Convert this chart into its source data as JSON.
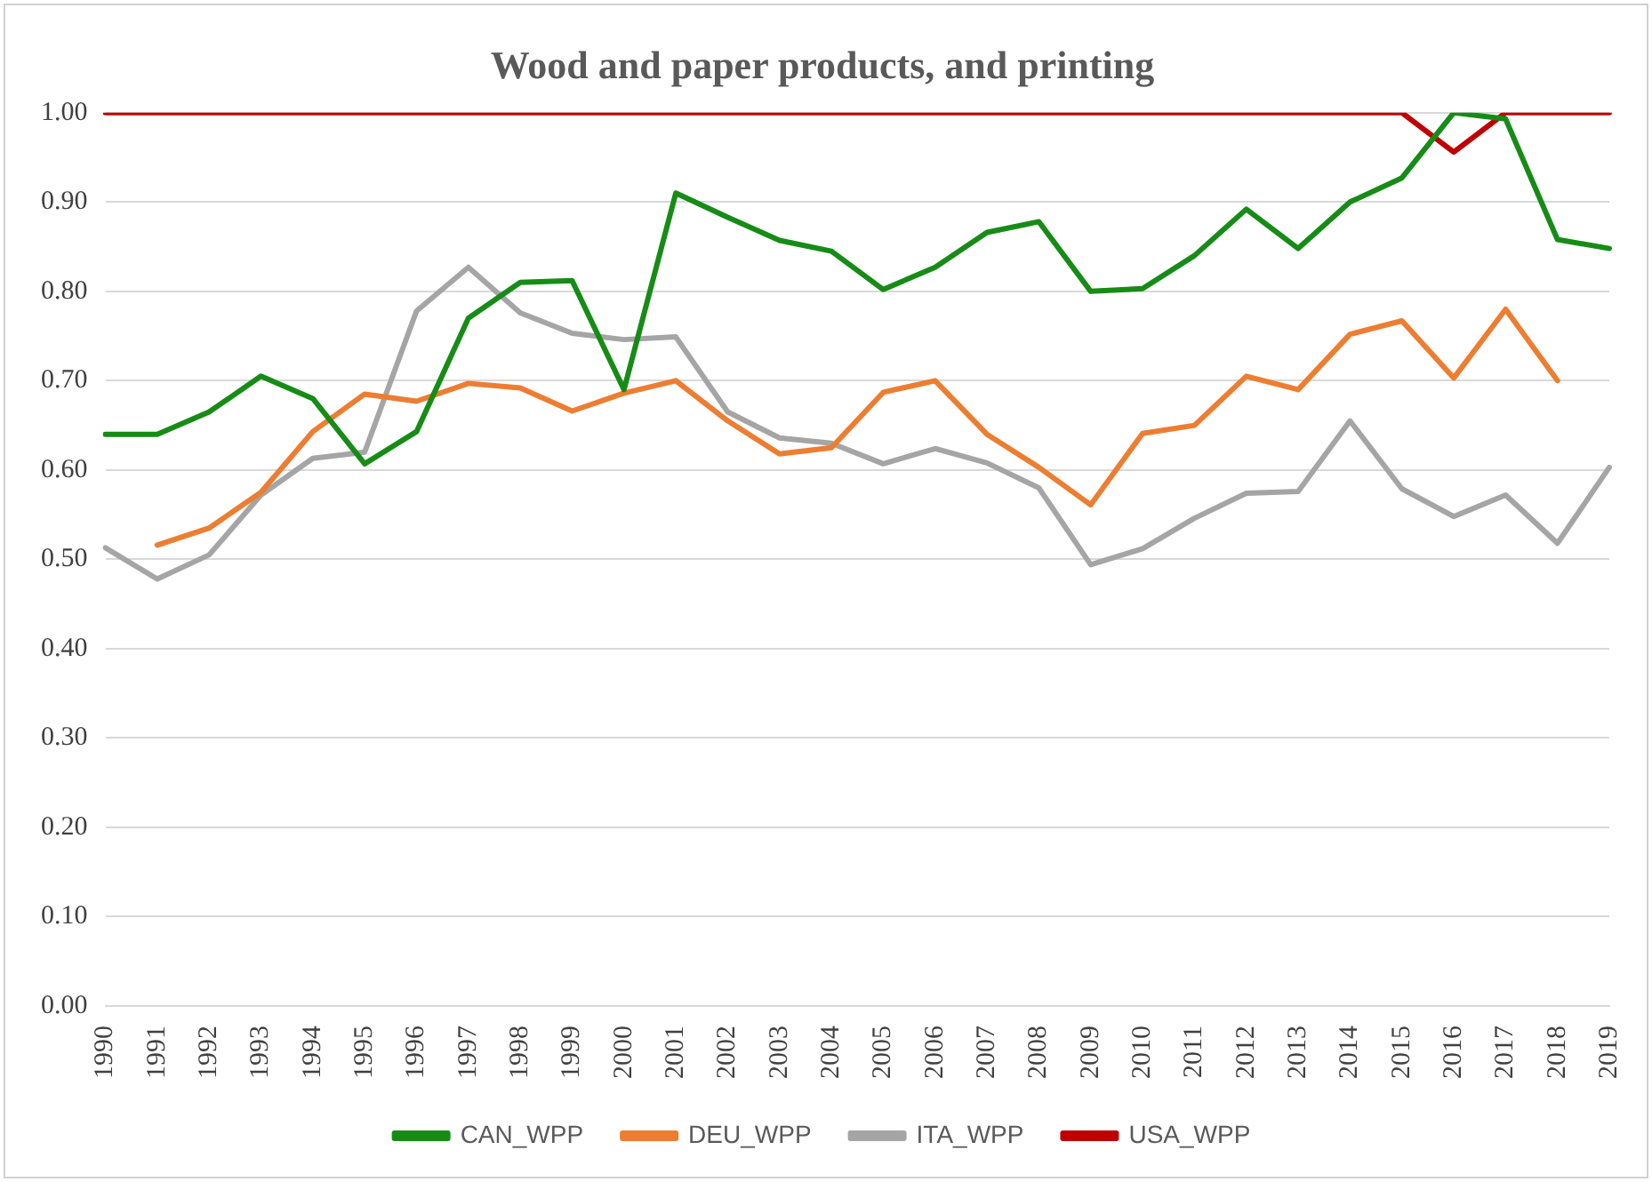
{
  "chart_data": {
    "type": "line",
    "title": "Wood and paper products, and printing",
    "categories": [
      "1990",
      "1991",
      "1992",
      "1993",
      "1994",
      "1995",
      "1996",
      "1997",
      "1998",
      "1999",
      "2000",
      "2001",
      "2002",
      "2003",
      "2004",
      "2005",
      "2006",
      "2007",
      "2008",
      "2009",
      "2010",
      "2011",
      "2012",
      "2013",
      "2014",
      "2015",
      "2016",
      "2017",
      "2018",
      "2019"
    ],
    "series": [
      {
        "name": "CAN_WPP",
        "color": "#168c16",
        "values": [
          0.64,
          0.64,
          0.665,
          0.705,
          0.68,
          0.607,
          0.643,
          0.77,
          0.81,
          0.812,
          0.69,
          0.91,
          0.883,
          0.857,
          0.845,
          0.802,
          0.827,
          0.866,
          0.878,
          0.8,
          0.803,
          0.84,
          0.892,
          0.848,
          0.9,
          0.927,
          1.0,
          0.993,
          0.858,
          0.848
        ]
      },
      {
        "name": "DEU_WPP",
        "color": "#ed7d31",
        "values": [
          null,
          0.516,
          0.535,
          0.575,
          0.643,
          0.685,
          0.677,
          0.697,
          0.692,
          0.666,
          0.686,
          0.7,
          0.655,
          0.618,
          0.625,
          0.687,
          0.7,
          0.64,
          0.603,
          0.561,
          0.641,
          0.65,
          0.705,
          0.69,
          0.752,
          0.767,
          0.703,
          0.78,
          0.7,
          null
        ]
      },
      {
        "name": "ITA_WPP",
        "color": "#a5a5a5",
        "values": [
          0.513,
          0.478,
          0.505,
          0.572,
          0.613,
          0.62,
          0.778,
          0.827,
          0.776,
          0.753,
          0.746,
          0.749,
          0.665,
          0.636,
          0.63,
          0.607,
          0.624,
          0.608,
          0.58,
          0.494,
          0.512,
          0.546,
          0.574,
          0.576,
          0.655,
          0.579,
          0.548,
          0.572,
          0.518,
          0.603
        ]
      },
      {
        "name": "USA_WPP",
        "color": "#c00000",
        "values": [
          1.0,
          1.0,
          1.0,
          1.0,
          1.0,
          1.0,
          1.0,
          1.0,
          1.0,
          1.0,
          1.0,
          1.0,
          1.0,
          1.0,
          1.0,
          1.0,
          1.0,
          1.0,
          1.0,
          1.0,
          1.0,
          1.0,
          1.0,
          1.0,
          1.0,
          1.0,
          0.956,
          1.0,
          1.0,
          1.0
        ]
      }
    ],
    "ylim": [
      0,
      1
    ],
    "yticks": [
      {
        "value": 0,
        "label": "0.00"
      },
      {
        "value": 0.1,
        "label": "0.10"
      },
      {
        "value": 0.2,
        "label": "0.20"
      },
      {
        "value": 0.3,
        "label": "0.30"
      },
      {
        "value": 0.4,
        "label": "0.40"
      },
      {
        "value": 0.5,
        "label": "0.50"
      },
      {
        "value": 0.6,
        "label": "0.60"
      },
      {
        "value": 0.7,
        "label": "0.70"
      },
      {
        "value": 0.8,
        "label": "0.80"
      },
      {
        "value": 0.9,
        "label": "0.90"
      },
      {
        "value": 1.0,
        "label": "1.00"
      }
    ],
    "grid": "y",
    "legend": "bottom",
    "marker": "none",
    "line_style": "solid"
  }
}
